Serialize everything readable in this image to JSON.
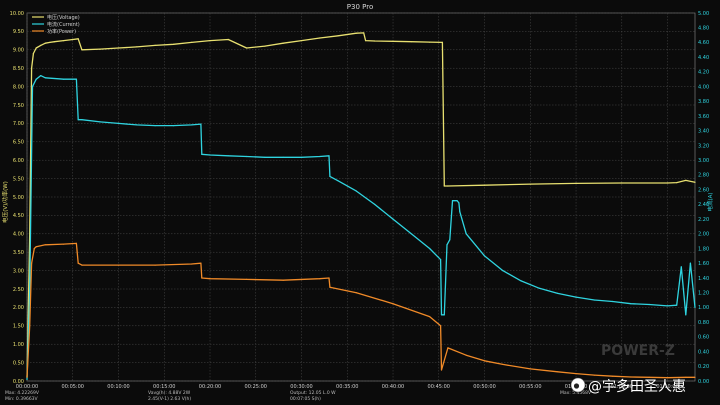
{
  "chart_data": {
    "type": "line",
    "title": "P30  Pro",
    "y_left_label": "电压(V)/功率(W)",
    "y_right_label": "电流(A)",
    "legend": [
      {
        "name": "电压(Voltage)",
        "color": "#e8e070"
      },
      {
        "name": "电流(Current)",
        "color": "#2fd4e0"
      },
      {
        "name": "功率(Power)",
        "color": "#f08a28"
      }
    ],
    "y_left_ticks": [
      "0.00",
      "0.50",
      "1.00",
      "1.50",
      "2.00",
      "2.50",
      "3.00",
      "3.50",
      "4.00",
      "4.50",
      "5.00",
      "5.50",
      "6.00",
      "6.50",
      "7.00",
      "7.50",
      "8.00",
      "8.50",
      "9.00",
      "9.50",
      "10.00"
    ],
    "y_right_ticks": [
      "0.00",
      "0.20",
      "0.40",
      "0.60",
      "0.80",
      "1.00",
      "1.20",
      "1.40",
      "1.60",
      "1.80",
      "2.00",
      "2.20",
      "2.40",
      "2.60",
      "2.80",
      "3.00",
      "3.20",
      "3.40",
      "3.60",
      "3.80",
      "4.00",
      "4.20",
      "4.40",
      "4.60",
      "4.80",
      "5.00"
    ],
    "y_left_range": [
      0,
      10
    ],
    "y_right_range": [
      0,
      5
    ],
    "x_range": [
      0,
      73
    ],
    "x_ticks": [
      "00:00:00",
      "00:05:00",
      "00:10:00",
      "00:15:00",
      "00:20:00",
      "00:25:00",
      "00:30:00",
      "00:35:00",
      "00:40:00",
      "00:45:00",
      "00:50:00",
      "00:55:00",
      "01:00:00",
      "01:05:00",
      "01:10:00"
    ],
    "x_tick_values": [
      0,
      5,
      10,
      15,
      20,
      25,
      30,
      35,
      40,
      45,
      50,
      55,
      60,
      65,
      70
    ],
    "grid": true,
    "series": [
      {
        "name": "电压(Voltage)",
        "axis": "left",
        "color": "#e8e070",
        "x": [
          0,
          0.3,
          0.5,
          0.7,
          1,
          1.5,
          2,
          2.5,
          3,
          4,
          5,
          5.6,
          6,
          8,
          10,
          12,
          14,
          16,
          18,
          20,
          22,
          24,
          26,
          28,
          30,
          32,
          34,
          36,
          36.8,
          37,
          38,
          40,
          42,
          44,
          45.4,
          45.6,
          46,
          50,
          55,
          60,
          65,
          70,
          71,
          72,
          73
        ],
        "y": [
          0.1,
          4.0,
          8.5,
          8.9,
          9.05,
          9.12,
          9.18,
          9.2,
          9.22,
          9.25,
          9.28,
          9.3,
          9.0,
          9.02,
          9.05,
          9.08,
          9.12,
          9.15,
          9.2,
          9.25,
          9.28,
          9.05,
          9.1,
          9.18,
          9.25,
          9.32,
          9.38,
          9.45,
          9.46,
          9.25,
          9.24,
          9.23,
          9.22,
          9.21,
          9.2,
          5.3,
          5.3,
          5.32,
          5.35,
          5.37,
          5.38,
          5.38,
          5.39,
          5.45,
          5.4
        ]
      },
      {
        "name": "电流(Current)",
        "axis": "right",
        "color": "#2fd4e0",
        "x": [
          0,
          0.3,
          0.6,
          1,
          1.5,
          2,
          4,
          5.4,
          5.6,
          6,
          8,
          10,
          12,
          14,
          16,
          18,
          19,
          19.1,
          20,
          22,
          24,
          26,
          28,
          30,
          32,
          33,
          33.1,
          34,
          36,
          38,
          40,
          42,
          44,
          45.2,
          45.3,
          45.6,
          45.9,
          46.2,
          46.5,
          47,
          47.2,
          47.3,
          48,
          50,
          52,
          54,
          56,
          58,
          60,
          62,
          64,
          66,
          68,
          70,
          71,
          71.5,
          72,
          72.5,
          73
        ],
        "y": [
          0.02,
          1.2,
          4.0,
          4.1,
          4.15,
          4.12,
          4.1,
          4.1,
          3.55,
          3.55,
          3.52,
          3.5,
          3.48,
          3.47,
          3.47,
          3.48,
          3.49,
          3.08,
          3.07,
          3.06,
          3.05,
          3.04,
          3.04,
          3.04,
          3.05,
          3.06,
          2.78,
          2.72,
          2.58,
          2.4,
          2.2,
          2.0,
          1.8,
          1.65,
          0.9,
          0.9,
          1.85,
          1.92,
          2.45,
          2.45,
          2.42,
          2.3,
          2.0,
          1.7,
          1.5,
          1.36,
          1.26,
          1.19,
          1.14,
          1.1,
          1.08,
          1.05,
          1.04,
          1.02,
          1.03,
          1.55,
          0.9,
          1.6,
          1.0
        ]
      },
      {
        "name": "功率(Power)",
        "axis": "left",
        "color": "#f08a28",
        "x": [
          0,
          0.3,
          0.5,
          0.8,
          1,
          2,
          4,
          5.4,
          5.6,
          6,
          10,
          14,
          18,
          19,
          19.1,
          20,
          24,
          28,
          32,
          33,
          33.1,
          36,
          40,
          44,
          45.2,
          45.3,
          46,
          48,
          50,
          52,
          55,
          58,
          60,
          62,
          64,
          66,
          68,
          70,
          72,
          73
        ],
        "y": [
          0.1,
          1.5,
          3.2,
          3.6,
          3.65,
          3.7,
          3.72,
          3.74,
          3.2,
          3.15,
          3.15,
          3.15,
          3.18,
          3.2,
          2.8,
          2.78,
          2.76,
          2.74,
          2.78,
          2.8,
          2.55,
          2.4,
          2.1,
          1.75,
          1.5,
          0.3,
          0.9,
          0.7,
          0.55,
          0.45,
          0.33,
          0.25,
          0.2,
          0.16,
          0.13,
          0.11,
          0.1,
          0.09,
          0.1,
          0.1
        ]
      }
    ],
    "footer_readouts": [
      {
        "lines": [
          "Max: 4.22269V",
          "Min: 0.39663V"
        ]
      },
      {
        "lines": [
          "Vavg(h): 4.88V 2W",
          "2.45(V-1) 2.63 V(h)"
        ]
      },
      {
        "lines": [
          "Output: 12.05 L.0 W",
          "00:07:05 S(h)"
        ]
      },
      {
        "lines": [
          "Max: 5.4568V"
        ]
      }
    ],
    "watermark": "POWER-Z",
    "weibo_credit": "@宇多田圣人惠"
  }
}
